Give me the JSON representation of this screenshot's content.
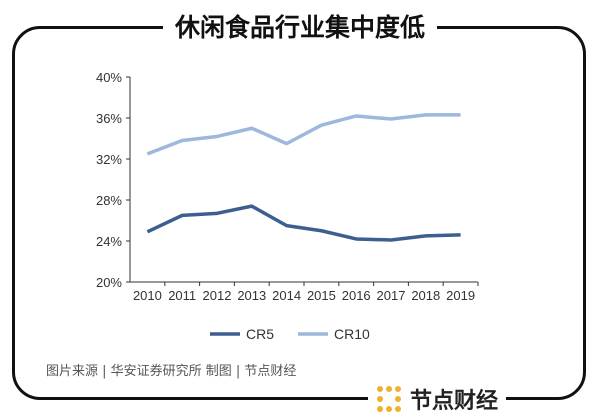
{
  "title": "休闲食品行业集中度低",
  "source": "图片来源 | 华安证券研究所   制图 | 节点财经",
  "brand": "节点财经",
  "colors": {
    "CR5": "#3d5f8f",
    "CR10": "#9db8dc",
    "logo": "#f0b030"
  },
  "chart_data": {
    "type": "line",
    "categories": [
      "2010",
      "2011",
      "2012",
      "2013",
      "2014",
      "2015",
      "2016",
      "2017",
      "2018",
      "2019"
    ],
    "series": [
      {
        "name": "CR5",
        "values": [
          24.9,
          26.5,
          26.7,
          27.4,
          25.5,
          25.0,
          24.2,
          24.1,
          24.5,
          24.6
        ]
      },
      {
        "name": "CR10",
        "values": [
          32.5,
          33.8,
          34.2,
          35.0,
          33.5,
          35.3,
          36.2,
          35.9,
          36.3,
          36.3
        ]
      }
    ],
    "ylim": [
      20,
      40
    ],
    "yticks": [
      "20%",
      "24%",
      "28%",
      "32%",
      "36%",
      "40%"
    ],
    "legend": "bottom",
    "grid": false
  }
}
